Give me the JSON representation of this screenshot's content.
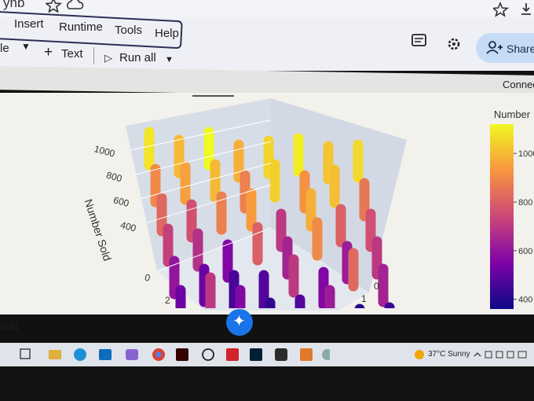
{
  "browser": {
    "tab_title": "ynb"
  },
  "menu": [
    "Insert",
    "Runtime",
    "Tools",
    "Help"
  ],
  "toolbar": {
    "code": "le",
    "text": "Text",
    "run_all": "Run all",
    "share": "Share",
    "connect": "Connec"
  },
  "chart": {
    "type": "bar3d",
    "z_title": "Number Sold",
    "zlim": [
      0,
      1200
    ],
    "zticks": [
      0,
      400,
      600,
      800,
      1000
    ],
    "x_ticks": [
      "2"
    ],
    "y_ticks": [
      "0",
      "1"
    ],
    "colorbar_title": "Number",
    "colorbar_lim": [
      360,
      1120
    ],
    "colorbar_ticks": [
      400,
      600,
      800,
      1000
    ],
    "colorscale": [
      "#0d0887",
      "#7e03a8",
      "#cc4778",
      "#f89540",
      "#f0f921"
    ],
    "values": [
      [
        1080,
        1000,
        1120,
        980,
        1050,
        1100,
        1020,
        1060
      ],
      [
        900,
        950,
        1000,
        880,
        1040,
        920,
        1010,
        860
      ],
      [
        820,
        760,
        880,
        940,
        700,
        980,
        800,
        760
      ],
      [
        720,
        680,
        560,
        800,
        640,
        900,
        620,
        700
      ],
      [
        600,
        520,
        460,
        480,
        700,
        560,
        820,
        640
      ],
      [
        520,
        700,
        560,
        420,
        480,
        620,
        400,
        440
      ]
    ]
  },
  "status": {
    "terminal": "inal"
  },
  "taskbar": {
    "weather": "37°C  Sunny"
  }
}
